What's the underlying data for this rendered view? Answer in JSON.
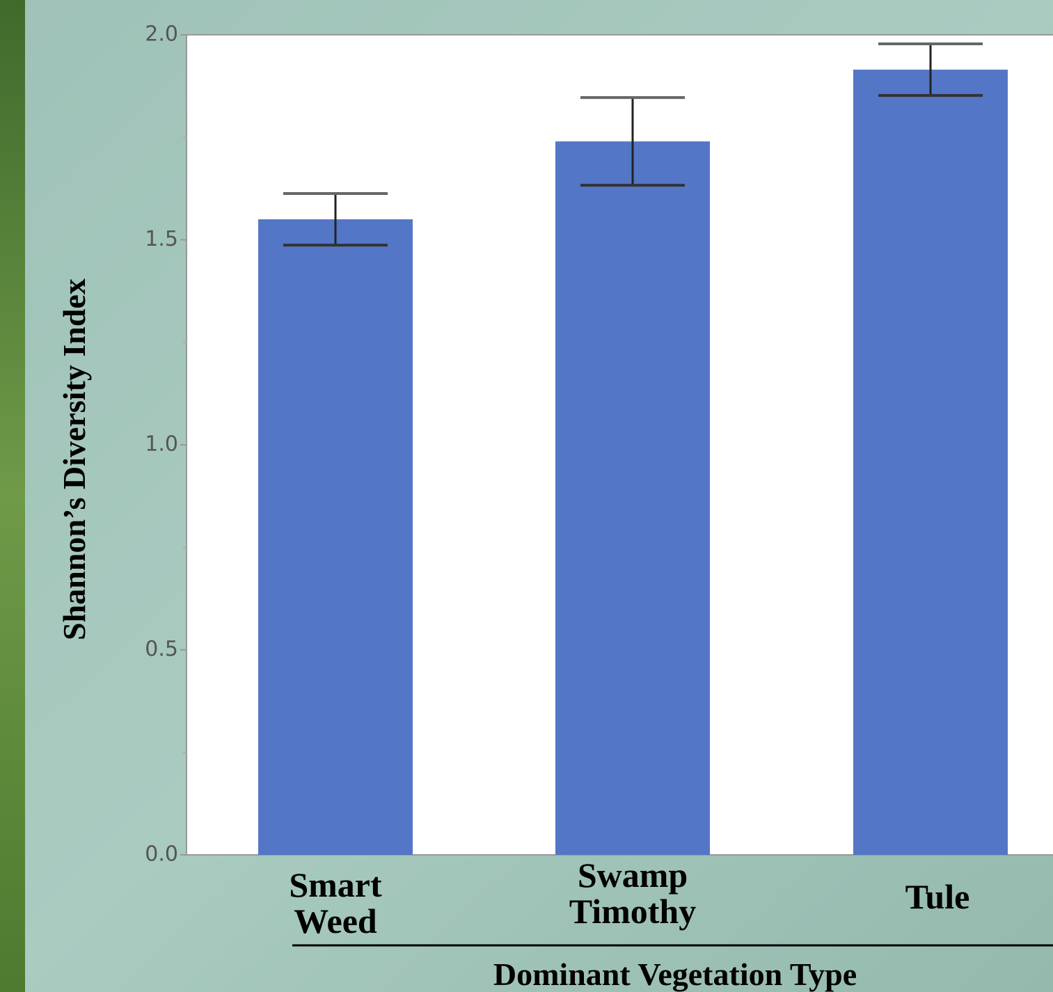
{
  "chart_data": {
    "type": "bar",
    "x_label": "Dominant Vegetation Type",
    "y_label": "Shannon’s Diversity Index",
    "categories": [
      "Smart Weed",
      "Swamp Timothy",
      "Tule"
    ],
    "values": [
      1.55,
      1.74,
      1.915
    ],
    "errors": [
      0.063,
      0.107,
      0.063
    ],
    "color": "#5476c6",
    "ylim": [
      0,
      2
    ],
    "yticks": [
      {
        "value": 0,
        "label": "0.0"
      },
      {
        "value": 0.5,
        "label": "0.5"
      },
      {
        "value": 1,
        "label": "1.0"
      },
      {
        "value": 1.5,
        "label": "1.5"
      },
      {
        "value": 2,
        "label": "2.0"
      }
    ],
    "minor_yticks": [
      0.25,
      0.75,
      1.25,
      1.75
    ]
  }
}
